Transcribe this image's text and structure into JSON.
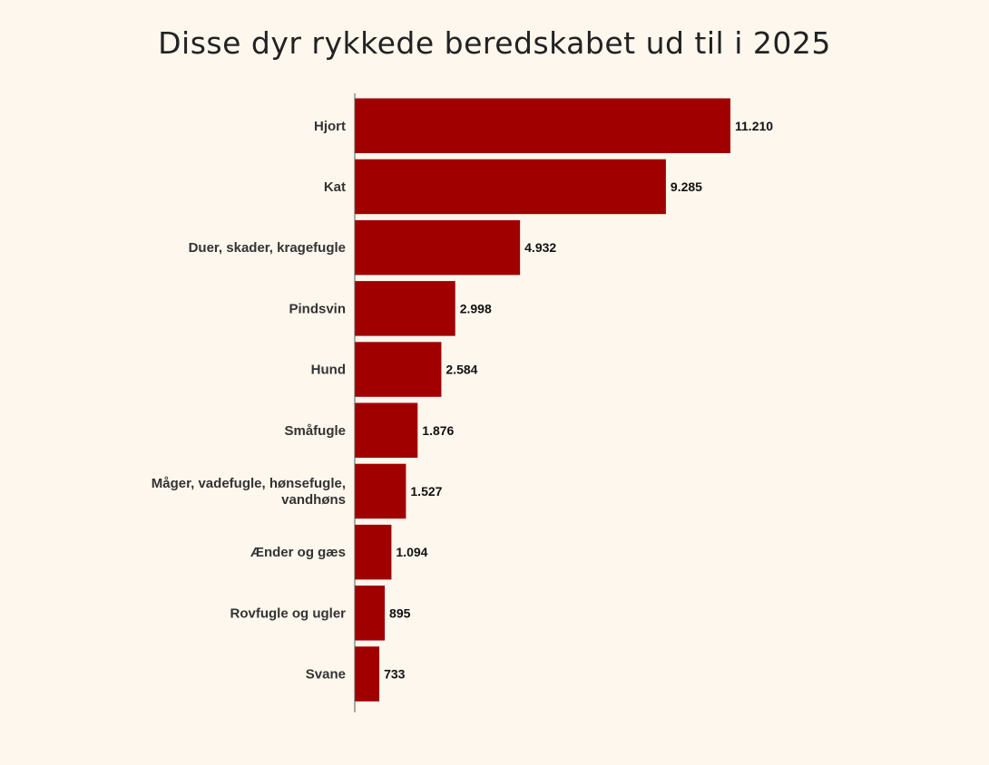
{
  "chart_data": {
    "type": "bar",
    "orientation": "horizontal",
    "title": "Disse dyr rykkede beredskabet ud til i 2025",
    "xlabel": "",
    "ylabel": "",
    "categories": [
      [
        "Hjort"
      ],
      [
        "Kat"
      ],
      [
        "Duer, skader, kragefugle"
      ],
      [
        "Pindsvin"
      ],
      [
        "Hund"
      ],
      [
        "Småfugle"
      ],
      [
        "Måger, vadefugle, hønsefugle,",
        "vandhøns"
      ],
      [
        "Ænder og gæs"
      ],
      [
        "Rovfugle og ugler"
      ],
      [
        "Svane"
      ]
    ],
    "values": [
      11210,
      9285,
      4932,
      2998,
      2584,
      1876,
      1527,
      1094,
      895,
      733
    ],
    "value_labels": [
      "11.210",
      "9.285",
      "4.932",
      "2.998",
      "2.584",
      "1.876",
      "1.527",
      "1.094",
      "895",
      "733"
    ],
    "xlim": [
      0,
      11210
    ],
    "grid": false,
    "colors": {
      "bar": "#a00000",
      "axis": "#555555",
      "background": "#fef7ee"
    }
  }
}
